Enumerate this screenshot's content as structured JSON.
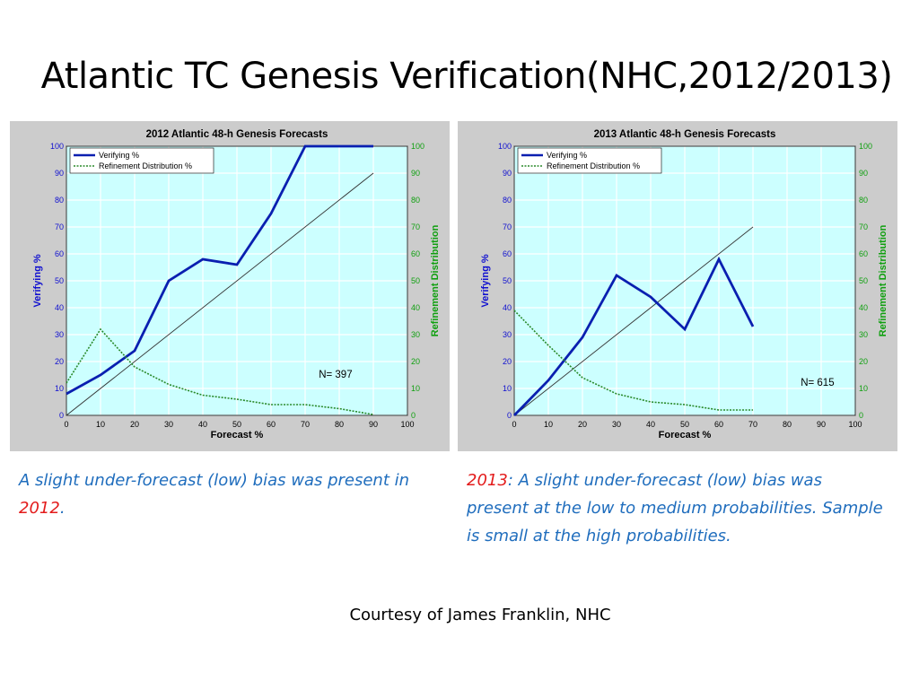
{
  "slide": {
    "title": "Atlantic TC Genesis Verification(NHC,2012/2013)",
    "footer": "Courtesy of James Franklin, NHC"
  },
  "captions": {
    "c2012": {
      "text": "A slight under-forecast (low) bias was present in ",
      "year": "2012",
      "end": "."
    },
    "c2013": {
      "year": "2013",
      "text": ": A slight under-forecast (low) bias was present at the low to medium probabilities. Sample is small at the high probabilities."
    }
  },
  "colors": {
    "panel_bg": "#cccccc",
    "plot_bg": "#ccffff",
    "verifying": "#0a1fb0",
    "refinement": "#2a8a2a",
    "left_axis": "#1010d0",
    "right_axis": "#10a010",
    "grid": "#ffffff"
  },
  "chart_data": [
    {
      "type": "line",
      "title": "2012 Atlantic 48-h Genesis Forecasts",
      "xlabel": "Forecast %",
      "ylabel": "Verifying %",
      "y2label": "Refinement Distribution",
      "xlim": [
        0,
        100
      ],
      "ylim": [
        0,
        100
      ],
      "y2lim": [
        0,
        100
      ],
      "xticks": [
        "0",
        "10",
        "20",
        "30",
        "40",
        "50",
        "60",
        "70",
        "80",
        "90",
        "100"
      ],
      "yticks": [
        "0",
        "10",
        "20",
        "30",
        "40",
        "50",
        "60",
        "70",
        "80",
        "90",
        "100"
      ],
      "y2ticks": [
        "0",
        "10",
        "20",
        "30",
        "40",
        "50",
        "60",
        "70",
        "80",
        "90",
        "100"
      ],
      "grid": true,
      "legend": "top-left",
      "annotation": "N= 397",
      "diagonal": [
        0,
        90
      ],
      "series": [
        {
          "name": "Verifying %",
          "style": "solid",
          "axis": "left",
          "x": [
            0,
            10,
            20,
            30,
            40,
            50,
            60,
            70,
            80,
            90
          ],
          "values": [
            8,
            15,
            24,
            50,
            58,
            56,
            75,
            100,
            100,
            100
          ]
        },
        {
          "name": "Refinement Distribution %",
          "style": "dotted",
          "axis": "right",
          "x": [
            0,
            10,
            20,
            30,
            40,
            50,
            60,
            70,
            80,
            90
          ],
          "values": [
            12,
            32,
            18,
            11.5,
            7.5,
            6,
            4,
            4,
            2.5,
            0.3
          ]
        }
      ]
    },
    {
      "type": "line",
      "title": "2013 Atlantic 48-h Genesis Forecasts",
      "xlabel": "Forecast %",
      "ylabel": "Verifying %",
      "y2label": "Refinement Distribution",
      "xlim": [
        0,
        100
      ],
      "ylim": [
        0,
        100
      ],
      "y2lim": [
        0,
        100
      ],
      "xticks": [
        "0",
        "10",
        "20",
        "30",
        "40",
        "50",
        "60",
        "70",
        "80",
        "90",
        "100"
      ],
      "yticks": [
        "0",
        "10",
        "20",
        "30",
        "40",
        "50",
        "60",
        "70",
        "80",
        "90",
        "100"
      ],
      "y2ticks": [
        "0",
        "10",
        "20",
        "30",
        "40",
        "50",
        "60",
        "70",
        "80",
        "90",
        "100"
      ],
      "grid": true,
      "legend": "top-left",
      "annotation": "N= 615",
      "diagonal": [
        0,
        70
      ],
      "series": [
        {
          "name": "Verifying %",
          "style": "solid",
          "axis": "left",
          "x": [
            0,
            10,
            20,
            30,
            40,
            50,
            60,
            70
          ],
          "values": [
            0,
            13,
            29,
            52,
            44,
            32,
            58,
            33
          ]
        },
        {
          "name": "Refinement Distribution %",
          "style": "dotted",
          "axis": "right",
          "x": [
            0,
            10,
            20,
            30,
            40,
            50,
            60,
            70
          ],
          "values": [
            39,
            26,
            14,
            8,
            5,
            4,
            2,
            2
          ]
        }
      ]
    }
  ]
}
